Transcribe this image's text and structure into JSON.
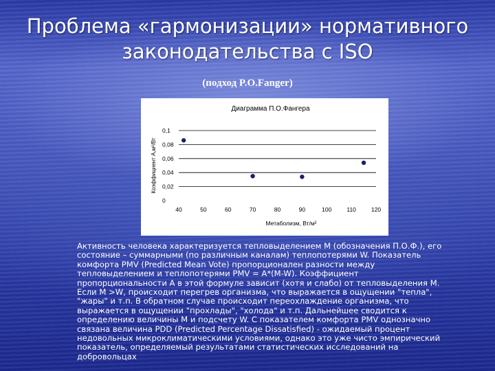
{
  "slide": {
    "title": "Проблема «гармонизации» нормативного законодательства с ISO",
    "subtitle": "(подход P.O.Fanger)",
    "body": "Активность человека характеризуется тепловыделением М (обозначения П.О.Ф.), его\nсостояние – суммарными (по различным каналам) теплопотерями W. Показатель\nкомфорта PMV (Predicted Mean Vote) пропорционален разности между\nтепловыделением и теплопотерями PMV = A*(M-W). Коэффициент\nпропорциональности А в этой формуле зависит (хотя и слабо) от тепловыделения М.\nЕсли M >W, происходит перегрев организма, что выражается в ощущении \"тепла\",\n\"жары\" и т.п. В обратном случае происходит переохлаждение организма, что\nвыражается в ощущении \"прохлады\", \"холода\" и т.п. Дальнейшее сводится к\nопределению величины М и подсчету W. С показателем комфорта PMV однозначно\nсвязана величина PDD (Predicted Percentage Dissatisfied) - ожидаемый процент\nнедовольных микроклиматическими условиями, однако это уже чисто эмпирический\nпоказатель, определяемый результатами статистических исследований на\nдобровольцах"
  },
  "chart_data": {
    "type": "scatter",
    "title": "Диаграмма П.О.Фангера",
    "xlabel": "Метаболизм, Вт/м²",
    "ylabel": "Коэффициент А,м²/Вт",
    "xlim": [
      40,
      120
    ],
    "ylim": [
      0,
      0.1
    ],
    "x_ticks": [
      "40",
      "50",
      "60",
      "70",
      "80",
      "90",
      "100",
      "110",
      "120"
    ],
    "y_ticks": [
      "0",
      "0,02",
      "0,04",
      "0,06",
      "0,08",
      "0,1"
    ],
    "grid": "horizontal",
    "legend": "none",
    "marker_color": "#1a1f6b",
    "points": [
      {
        "x": 42,
        "y": 0.086
      },
      {
        "x": 70,
        "y": 0.035
      },
      {
        "x": 90,
        "y": 0.034
      },
      {
        "x": 115,
        "y": 0.054
      }
    ]
  }
}
